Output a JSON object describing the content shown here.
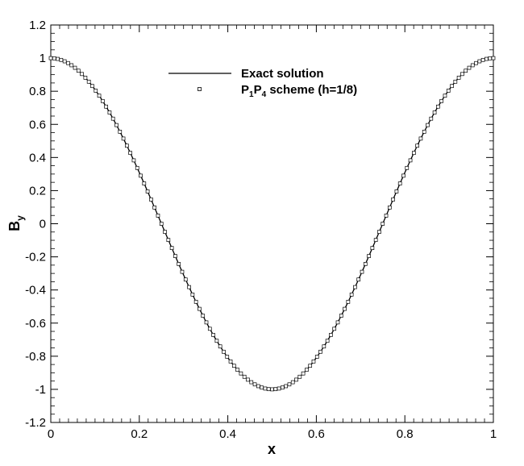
{
  "chart_data": {
    "type": "line",
    "title": "",
    "xlabel": "x",
    "ylabel": {
      "main": "B",
      "sub": "y"
    },
    "xlim": [
      0,
      1
    ],
    "ylim": [
      -1.2,
      1.2
    ],
    "xticks": [
      "0",
      "0.2",
      "0.4",
      "0.6",
      "0.8",
      "1"
    ],
    "yticks": [
      "1.2",
      "1",
      "0.8",
      "0.6",
      "0.4",
      "0.2",
      "0",
      "-0.2",
      "-0.4",
      "-0.6",
      "-0.8",
      "-1",
      "-1.2"
    ],
    "grid": false,
    "legend_position": "top-center",
    "series": [
      {
        "name": "Exact solution",
        "style": "solid-line",
        "color": "#000000",
        "function": "cos(2*pi*x)",
        "x_range": [
          0,
          1
        ]
      },
      {
        "name": {
          "parts": [
            "P",
            "1",
            "P",
            "4",
            " scheme (h=1/8)"
          ]
        },
        "style": "open-square-markers",
        "color": "#000000",
        "function": "cos(2*pi*x)",
        "x_range": [
          0,
          1
        ],
        "point_count": 129
      }
    ]
  }
}
